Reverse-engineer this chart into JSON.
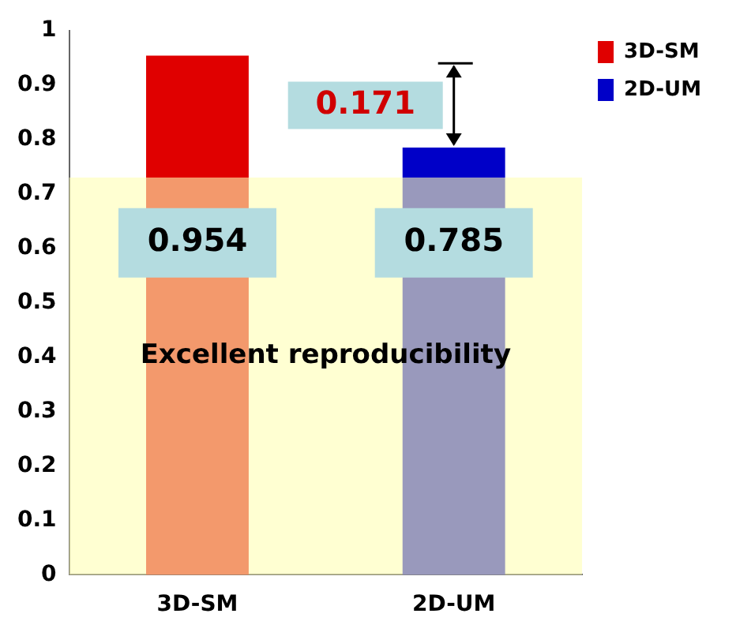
{
  "chart_data": {
    "type": "bar",
    "categories": [
      "3D-SM",
      "2D-UM"
    ],
    "series": [
      {
        "name": "3D-SM",
        "color": "#e00000",
        "values": [
          0.954,
          null
        ]
      },
      {
        "name": "2D-UM",
        "color": "#0000c8",
        "values": [
          null,
          0.785
        ]
      }
    ],
    "ylim": [
      0,
      1
    ],
    "yticks": [
      0,
      0.1,
      0.2,
      0.3,
      0.4,
      0.5,
      0.6,
      0.7,
      0.8,
      0.9,
      1
    ],
    "data_labels": true,
    "grid": false,
    "legend": "top right",
    "bands": [
      {
        "axis": "y",
        "from": 0,
        "to": 0.73,
        "label": "Excellent reproducibility",
        "color": "#ffffb4"
      }
    ],
    "annotations": [
      "0.171"
    ]
  }
}
